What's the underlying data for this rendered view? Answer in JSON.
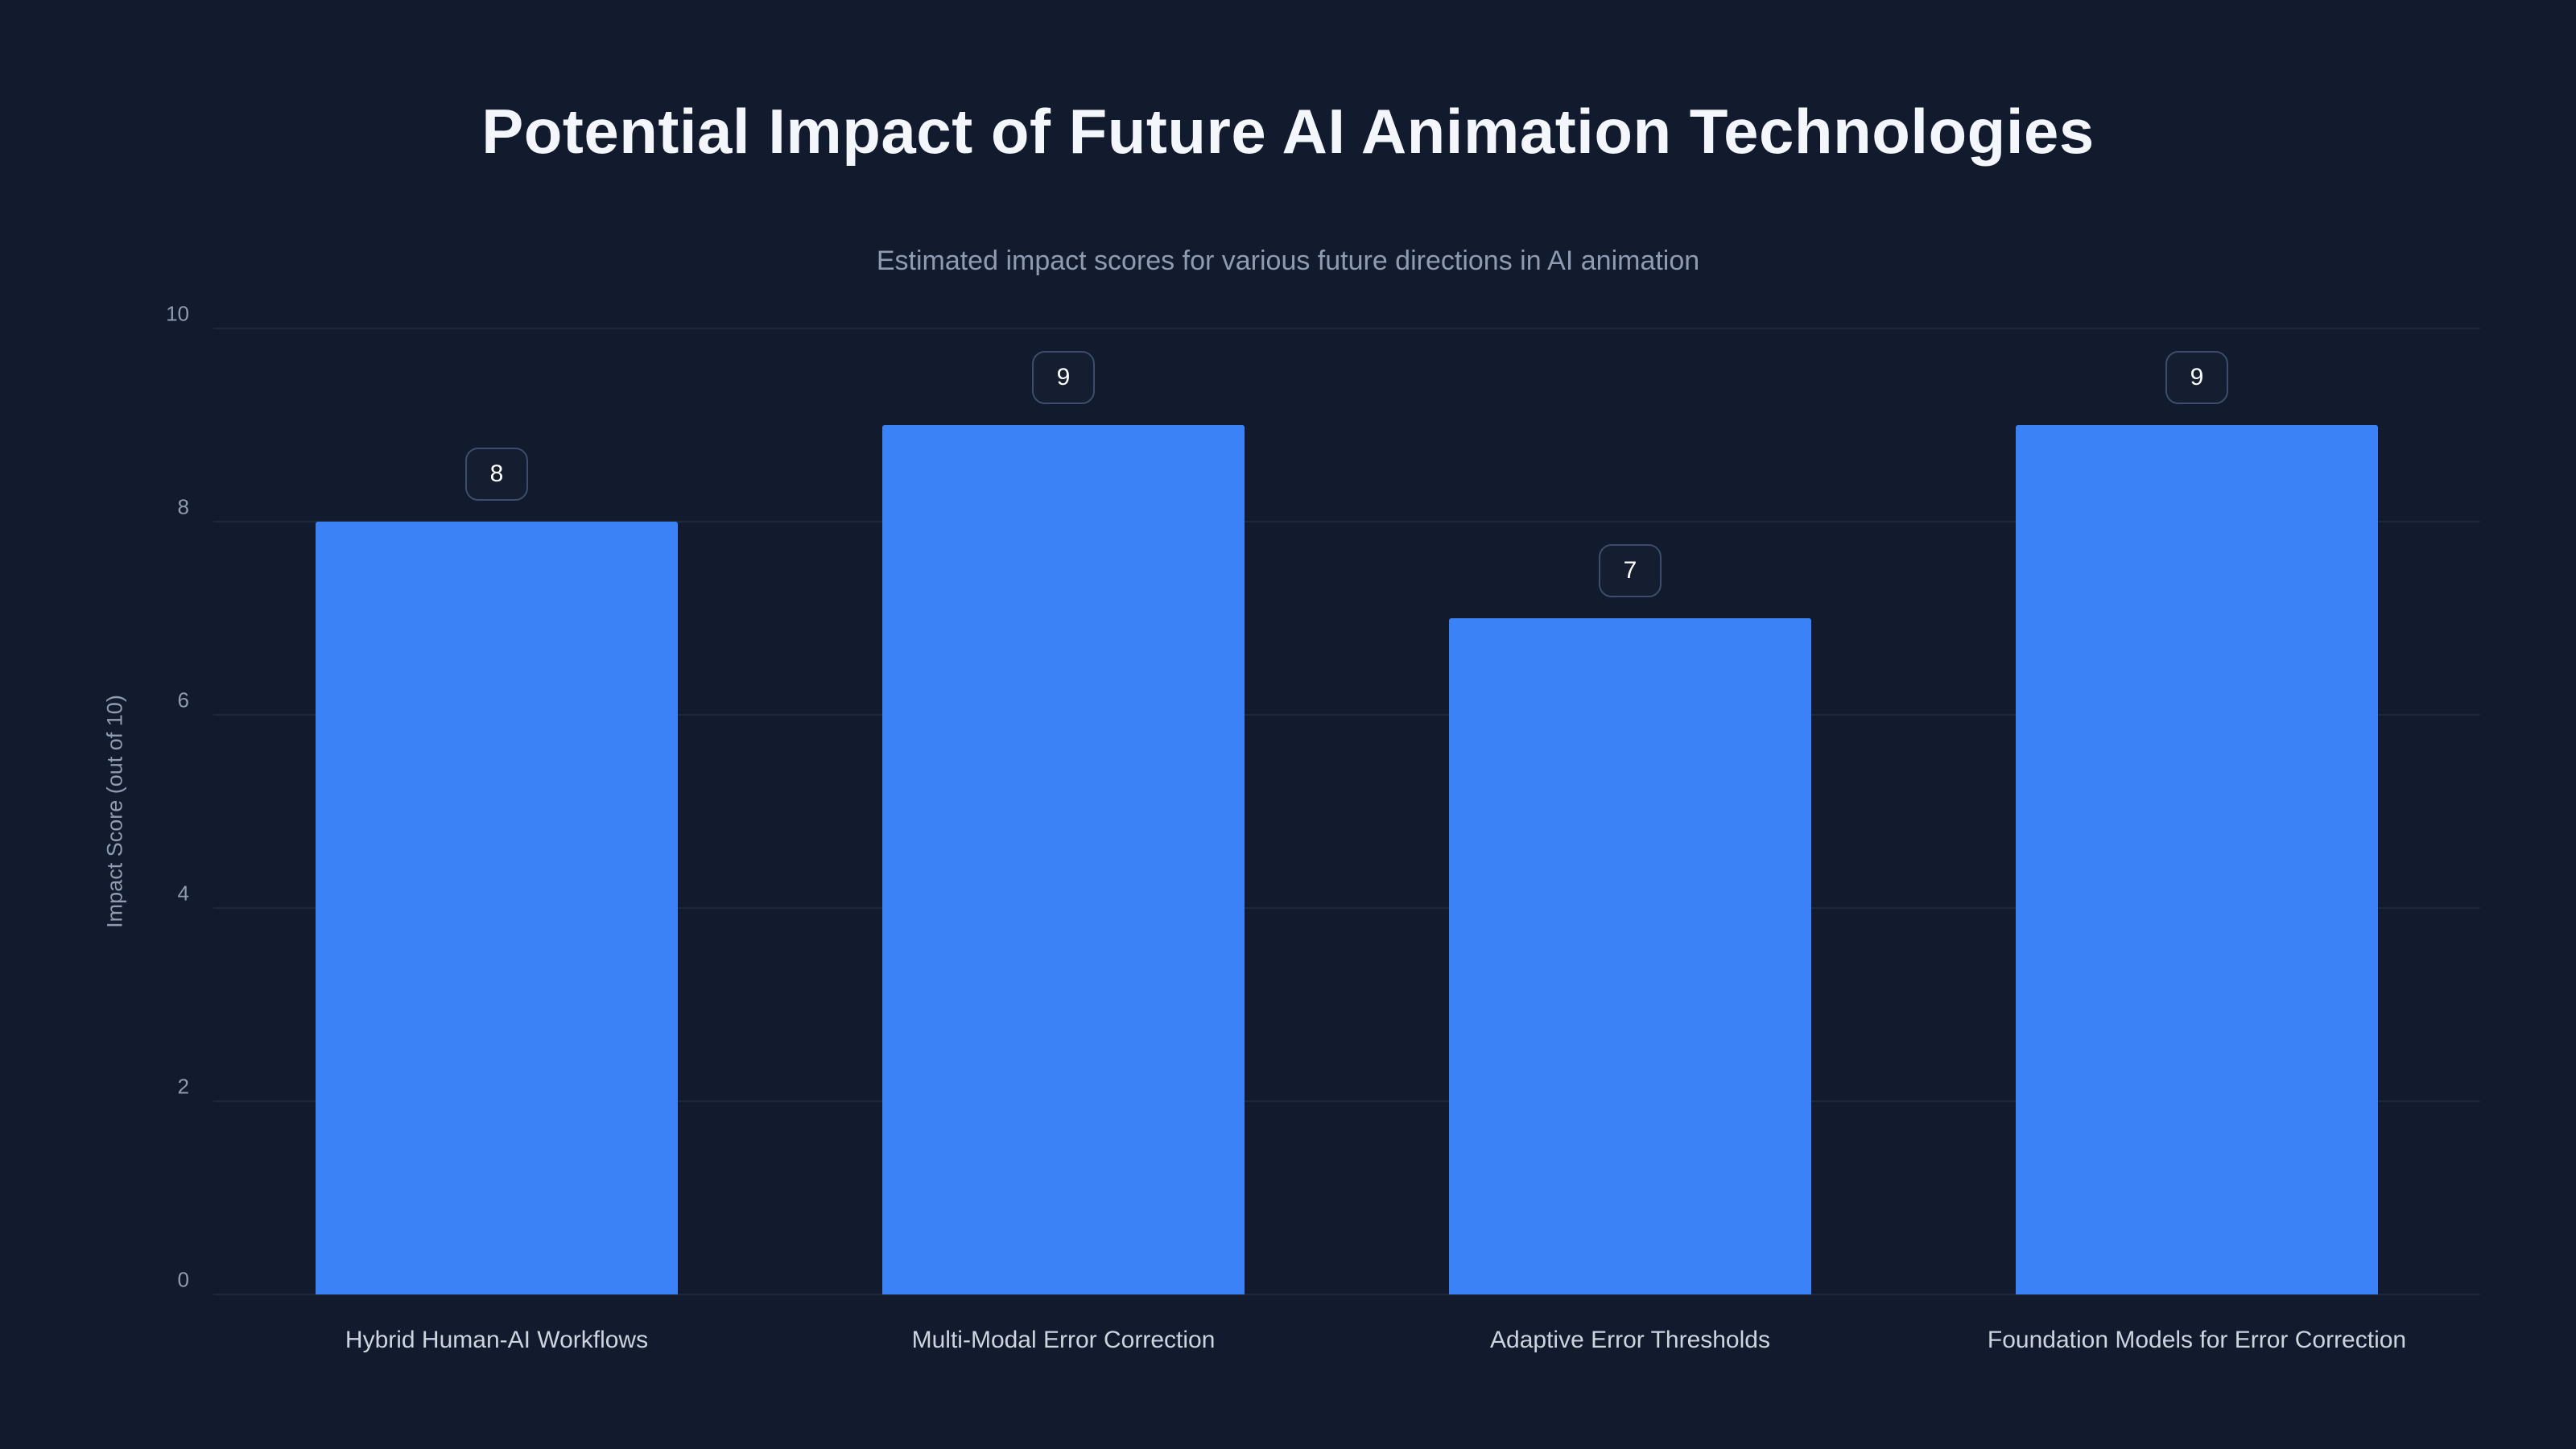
{
  "title": "Potential Impact of Future AI Animation Technologies",
  "subtitle": "Estimated impact scores for various future directions in AI animation",
  "colors": {
    "background": "#121a2e",
    "bar": "#3b82f6",
    "gridline": "#1d2740",
    "title_text": "#f3f6fa",
    "muted_text": "#8e9bb0",
    "axis_label_text": "#ccd4df",
    "badge_border": "#3c4c69",
    "badge_background": "#151d31"
  },
  "chart_data": {
    "type": "bar",
    "title": "Potential Impact of Future AI Animation Technologies",
    "subtitle": "Estimated impact scores for various future directions in AI animation",
    "categories": [
      "Hybrid Human-AI Workflows",
      "Multi-Modal Error Correction",
      "Adaptive Error Thresholds",
      "Foundation Models for Error Correction"
    ],
    "values": [
      8,
      9,
      7,
      9
    ],
    "data_labels": [
      "8",
      "9",
      "7",
      "9"
    ],
    "xlabel": "",
    "ylabel": "Impact Score (out of 10)",
    "ylim": [
      0,
      10
    ],
    "yticks": [
      0,
      2,
      4,
      6,
      8,
      10
    ],
    "grid": true,
    "legend": false
  }
}
